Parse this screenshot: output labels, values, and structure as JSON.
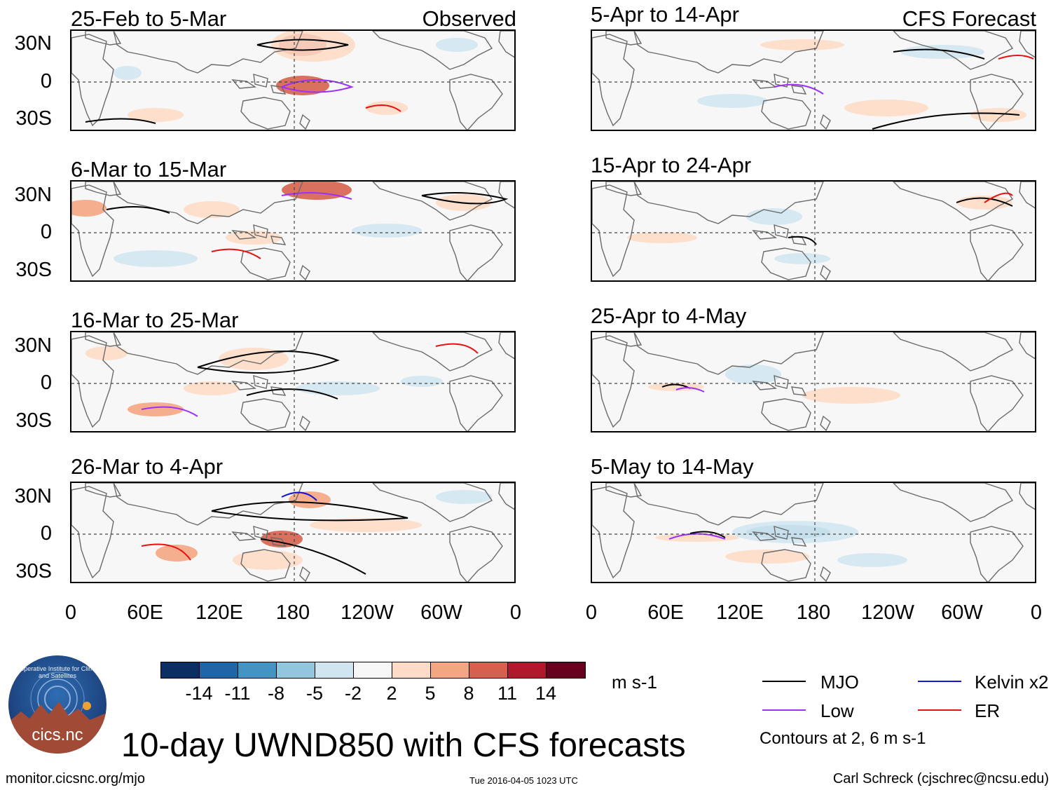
{
  "figure": {
    "title": "10-day UWND850 with CFS forecasts",
    "contours_note": "Contours at 2, 6 m s-1",
    "source_url": "monitor.cicsnc.org/mjo",
    "timestamp": "Tue 2016-04-05 1023 UTC",
    "credit": "Carl Schreck (cjschrec@ncsu.edu)",
    "logo_text": "cics.nc",
    "logo_arc_text": "Cooperative Institute for Climate and Satellites"
  },
  "left_column_label": "Observed",
  "right_column_label": "CFS Forecast",
  "panels_observed": [
    {
      "period": "25-Feb to 5-Mar"
    },
    {
      "period": "6-Mar to 15-Mar"
    },
    {
      "period": "16-Mar to 25-Mar"
    },
    {
      "period": "26-Mar to 4-Apr"
    }
  ],
  "panels_forecast": [
    {
      "period": "5-Apr to 14-Apr"
    },
    {
      "period": "15-Apr to 24-Apr"
    },
    {
      "period": "25-Apr to 4-May"
    },
    {
      "period": "5-May to 14-May"
    }
  ],
  "lat_labels": [
    "30N",
    "0",
    "30S"
  ],
  "lon_labels": [
    "0",
    "60E",
    "120E",
    "180",
    "120W",
    "60W",
    "0"
  ],
  "colorbar": {
    "colors": [
      "#0b2f63",
      "#1f66a8",
      "#4393c3",
      "#92c5de",
      "#d1e5f0",
      "#f7f7f7",
      "#fddbc7",
      "#f4a582",
      "#d6604d",
      "#b2182b",
      "#67001f"
    ],
    "ticks": [
      "-14",
      "-11",
      "-8",
      "-5",
      "-2",
      "2",
      "5",
      "8",
      "11",
      "14"
    ],
    "units": "m s-1"
  },
  "legend": [
    {
      "label": "MJO",
      "color": "#000000"
    },
    {
      "label": "Kelvin x2",
      "color": "#1515d6"
    },
    {
      "label": "Low",
      "color": "#9b30ff"
    },
    {
      "label": "ER",
      "color": "#e81010"
    }
  ]
}
